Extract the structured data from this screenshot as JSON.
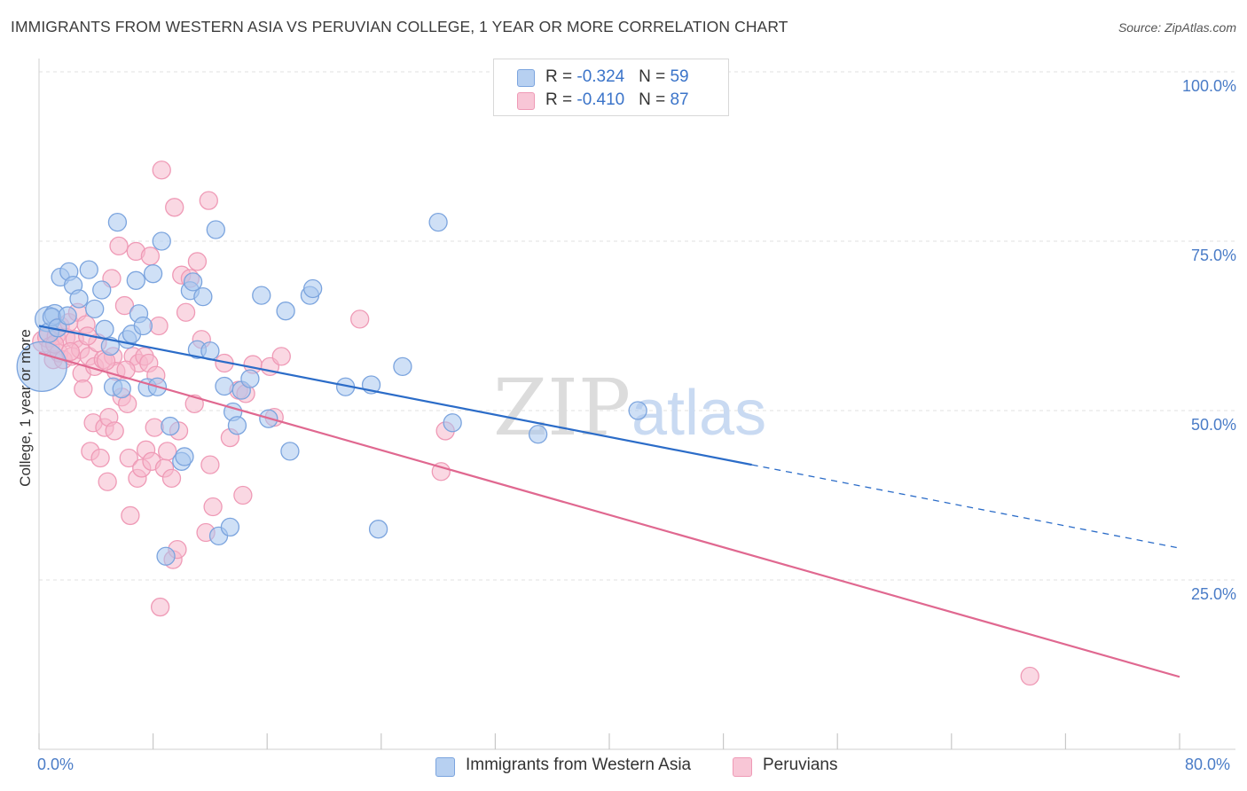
{
  "header": {
    "title": "IMMIGRANTS FROM WESTERN ASIA VS PERUVIAN COLLEGE, 1 YEAR OR MORE CORRELATION CHART",
    "source": "Source: ZipAtlas.com"
  },
  "watermark": {
    "zip": "ZIP",
    "atlas": "atlas"
  },
  "legend_top": {
    "rows": [
      {
        "r_label": "R = ",
        "r_value": "-0.324",
        "n_label": "N = ",
        "n_value": "59"
      },
      {
        "r_label": "R = ",
        "r_value": "-0.410",
        "n_label": "N = ",
        "n_value": "87"
      }
    ]
  },
  "legend_bottom": {
    "series1": "Immigrants from Western Asia",
    "series2": "Peruvians"
  },
  "axes": {
    "ylabel": "College, 1 year or more",
    "y_ticks": [
      "100.0%",
      "75.0%",
      "50.0%",
      "25.0%"
    ],
    "x_left": "0.0%",
    "x_right": "80.0%"
  },
  "colors": {
    "blue_fill": "#a8c6ef",
    "blue_stroke": "#7ba4de",
    "blue_line": "#2b6cc8",
    "pink_fill": "#f6b8cc",
    "pink_stroke": "#ef9ab6",
    "pink_line": "#e06890",
    "grid": "#e2e2e2",
    "tick_text": "#4a7cc7"
  },
  "chart_data": {
    "type": "scatter",
    "title": "IMMIGRANTS FROM WESTERN ASIA VS PERUVIAN COLLEGE, 1 YEAR OR MORE CORRELATION CHART",
    "xlabel": "",
    "ylabel": "College, 1 year or more",
    "xlim": [
      0,
      80
    ],
    "ylim": [
      0,
      102
    ],
    "y_gridlines": [
      25,
      50,
      75,
      100
    ],
    "series": [
      {
        "name": "Immigrants from Western Asia",
        "r": -0.324,
        "n": 59,
        "trend": {
          "x0": 0,
          "y0": 62.5,
          "x1": 50,
          "y1": 42.0,
          "dash_to_x": 80,
          "dash_to_y": 29.7
        },
        "points": [
          [
            0.2,
            56.5,
            28
          ],
          [
            0.6,
            63.5,
            14
          ],
          [
            0.7,
            61.5,
            11
          ],
          [
            1.1,
            64.2,
            11
          ],
          [
            1.5,
            69.7,
            10
          ],
          [
            2.1,
            70.5,
            10
          ],
          [
            2.4,
            68.5,
            10
          ],
          [
            2.8,
            66.5,
            10
          ],
          [
            3.5,
            70.8,
            10
          ],
          [
            3.9,
            65.0,
            10
          ],
          [
            4.4,
            67.8,
            10
          ],
          [
            4.6,
            62.0,
            10
          ],
          [
            5.0,
            59.5,
            10
          ],
          [
            5.2,
            53.5,
            10
          ],
          [
            5.5,
            77.8,
            10
          ],
          [
            5.8,
            53.2,
            10
          ],
          [
            6.2,
            60.5,
            10
          ],
          [
            6.5,
            61.3,
            10
          ],
          [
            6.8,
            69.2,
            10
          ],
          [
            7.0,
            64.3,
            10
          ],
          [
            7.3,
            62.5,
            10
          ],
          [
            7.6,
            53.4,
            10
          ],
          [
            8.0,
            70.2,
            10
          ],
          [
            8.3,
            53.5,
            10
          ],
          [
            8.6,
            75.0,
            10
          ],
          [
            8.9,
            28.5,
            10
          ],
          [
            9.2,
            47.7,
            10
          ],
          [
            10.0,
            42.5,
            10
          ],
          [
            10.2,
            43.2,
            10
          ],
          [
            10.6,
            67.7,
            10
          ],
          [
            10.8,
            69.0,
            10
          ],
          [
            11.1,
            59.0,
            10
          ],
          [
            11.5,
            66.8,
            10
          ],
          [
            12.0,
            58.8,
            10
          ],
          [
            12.4,
            76.7,
            10
          ],
          [
            12.6,
            31.5,
            10
          ],
          [
            13.0,
            53.6,
            10
          ],
          [
            13.4,
            32.8,
            10
          ],
          [
            13.6,
            49.8,
            10
          ],
          [
            13.9,
            47.8,
            10
          ],
          [
            14.2,
            53.0,
            10
          ],
          [
            14.8,
            54.7,
            10
          ],
          [
            15.6,
            67.0,
            10
          ],
          [
            16.1,
            48.8,
            10
          ],
          [
            17.3,
            64.7,
            10
          ],
          [
            17.6,
            44.0,
            10
          ],
          [
            19.0,
            67.0,
            10
          ],
          [
            19.2,
            68.0,
            10
          ],
          [
            21.5,
            53.5,
            10
          ],
          [
            23.3,
            53.8,
            10
          ],
          [
            23.8,
            32.5,
            10
          ],
          [
            25.5,
            56.5,
            10
          ],
          [
            28.0,
            77.8,
            10
          ],
          [
            29.0,
            48.2,
            10
          ],
          [
            35.0,
            46.5,
            10
          ],
          [
            42.0,
            50.0,
            10
          ],
          [
            0.9,
            63.8,
            10
          ],
          [
            1.3,
            62.2,
            10
          ],
          [
            2.0,
            64.0,
            10
          ]
        ]
      },
      {
        "name": "Peruvians",
        "r": -0.41,
        "n": 87,
        "trend": {
          "x0": 0,
          "y0": 58.5,
          "x1": 80,
          "y1": 10.7
        },
        "points": [
          [
            0.3,
            60.2,
            12
          ],
          [
            0.6,
            60.8,
            11
          ],
          [
            0.8,
            59.5,
            10
          ],
          [
            1.0,
            57.5,
            10
          ],
          [
            1.2,
            61.0,
            10
          ],
          [
            1.4,
            58.5,
            10
          ],
          [
            1.5,
            62.5,
            10
          ],
          [
            1.7,
            57.5,
            10
          ],
          [
            1.9,
            60.8,
            10
          ],
          [
            2.1,
            63.0,
            10
          ],
          [
            2.3,
            58.0,
            10
          ],
          [
            2.5,
            60.5,
            10
          ],
          [
            2.7,
            64.5,
            10
          ],
          [
            2.9,
            59.0,
            10
          ],
          [
            3.0,
            55.5,
            10
          ],
          [
            3.1,
            53.2,
            10
          ],
          [
            3.3,
            62.7,
            10
          ],
          [
            3.5,
            58.0,
            10
          ],
          [
            3.6,
            44.0,
            10
          ],
          [
            3.8,
            48.2,
            10
          ],
          [
            3.9,
            56.5,
            10
          ],
          [
            4.1,
            60.0,
            10
          ],
          [
            4.3,
            43.0,
            10
          ],
          [
            4.5,
            57.5,
            10
          ],
          [
            4.6,
            47.5,
            10
          ],
          [
            4.8,
            39.5,
            10
          ],
          [
            4.9,
            49.0,
            10
          ],
          [
            5.1,
            69.5,
            10
          ],
          [
            5.2,
            58.0,
            10
          ],
          [
            5.3,
            47.0,
            10
          ],
          [
            5.4,
            55.8,
            10
          ],
          [
            5.6,
            74.3,
            10
          ],
          [
            5.8,
            52.0,
            10
          ],
          [
            6.0,
            65.5,
            10
          ],
          [
            6.2,
            51.0,
            10
          ],
          [
            6.3,
            43.0,
            10
          ],
          [
            6.4,
            34.5,
            10
          ],
          [
            6.6,
            58.0,
            10
          ],
          [
            6.8,
            73.5,
            10
          ],
          [
            6.9,
            40.0,
            10
          ],
          [
            7.0,
            57.0,
            10
          ],
          [
            7.2,
            41.5,
            10
          ],
          [
            7.4,
            58.0,
            10
          ],
          [
            7.5,
            44.2,
            10
          ],
          [
            7.7,
            57.0,
            10
          ],
          [
            7.8,
            72.8,
            10
          ],
          [
            7.9,
            42.5,
            10
          ],
          [
            8.1,
            47.5,
            10
          ],
          [
            8.2,
            55.2,
            10
          ],
          [
            8.4,
            62.5,
            10
          ],
          [
            8.5,
            21.0,
            10
          ],
          [
            8.6,
            85.5,
            10
          ],
          [
            8.8,
            41.5,
            10
          ],
          [
            9.0,
            44.0,
            10
          ],
          [
            9.3,
            40.0,
            10
          ],
          [
            9.4,
            28.0,
            10
          ],
          [
            9.5,
            80.0,
            10
          ],
          [
            9.7,
            29.5,
            10
          ],
          [
            9.8,
            47.0,
            10
          ],
          [
            10.0,
            70.0,
            10
          ],
          [
            10.3,
            64.5,
            10
          ],
          [
            10.6,
            69.5,
            10
          ],
          [
            10.9,
            51.0,
            10
          ],
          [
            11.1,
            72.0,
            10
          ],
          [
            11.4,
            60.5,
            10
          ],
          [
            11.7,
            32.0,
            10
          ],
          [
            11.9,
            81.0,
            10
          ],
          [
            12.0,
            42.0,
            10
          ],
          [
            12.2,
            35.8,
            10
          ],
          [
            13.0,
            57.0,
            10
          ],
          [
            13.4,
            46.0,
            10
          ],
          [
            14.0,
            53.0,
            10
          ],
          [
            14.3,
            37.5,
            10
          ],
          [
            14.5,
            52.5,
            10
          ],
          [
            15.0,
            56.8,
            10
          ],
          [
            16.2,
            56.5,
            10
          ],
          [
            16.5,
            49.0,
            10
          ],
          [
            17.0,
            58.0,
            10
          ],
          [
            22.5,
            63.5,
            10
          ],
          [
            28.5,
            47.0,
            10
          ],
          [
            28.2,
            41.0,
            10
          ],
          [
            69.5,
            10.8,
            10
          ],
          [
            1.1,
            59.8,
            10
          ],
          [
            2.2,
            58.7,
            10
          ],
          [
            3.4,
            61.0,
            10
          ],
          [
            4.7,
            57.3,
            10
          ],
          [
            6.1,
            56.0,
            10
          ]
        ]
      }
    ]
  }
}
